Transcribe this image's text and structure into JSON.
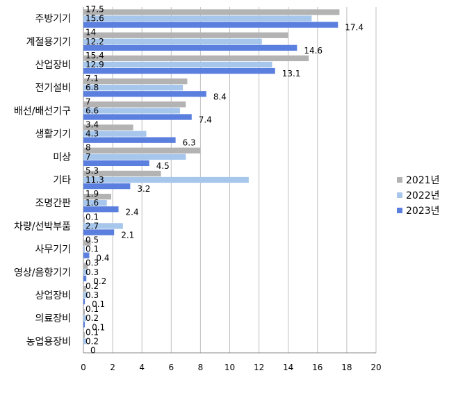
{
  "chart_data": {
    "type": "bar",
    "orientation": "horizontal",
    "categories": [
      "주방기기",
      "계절용기기",
      "산업장비",
      "전기설비",
      "배선/배선기구",
      "생활기기",
      "미상",
      "기타",
      "조명간판",
      "차량/선박부품",
      "사무기기",
      "영상/음향기기",
      "상업장비",
      "의료장비",
      "농업용장비"
    ],
    "series": [
      {
        "name": "2021년",
        "color": "#b3b3b3",
        "values": [
          17.5,
          14,
          15.4,
          7.1,
          7,
          3.4,
          8,
          5.3,
          1.9,
          0.1,
          0.5,
          0.3,
          0.2,
          0.1,
          0.1
        ]
      },
      {
        "name": "2022년",
        "color": "#a7c6ec",
        "values": [
          15.6,
          12.2,
          12.9,
          6.8,
          6.6,
          4.3,
          7,
          11.3,
          1.6,
          2.7,
          0.1,
          0.3,
          0.3,
          0.2,
          0.2
        ]
      },
      {
        "name": "2023년",
        "color": "#5b7fde",
        "values": [
          17.4,
          14.6,
          13.1,
          8.4,
          7.4,
          6.3,
          4.5,
          3.2,
          2.4,
          2.1,
          0.4,
          0.2,
          0.1,
          0.1,
          0
        ]
      }
    ],
    "xlim": [
      0,
      20
    ],
    "xticks": [
      0,
      2,
      4,
      6,
      8,
      10,
      12,
      14,
      16,
      18,
      20
    ],
    "grid": true,
    "legend": "right",
    "title": "",
    "xlabel": "",
    "ylabel": ""
  }
}
